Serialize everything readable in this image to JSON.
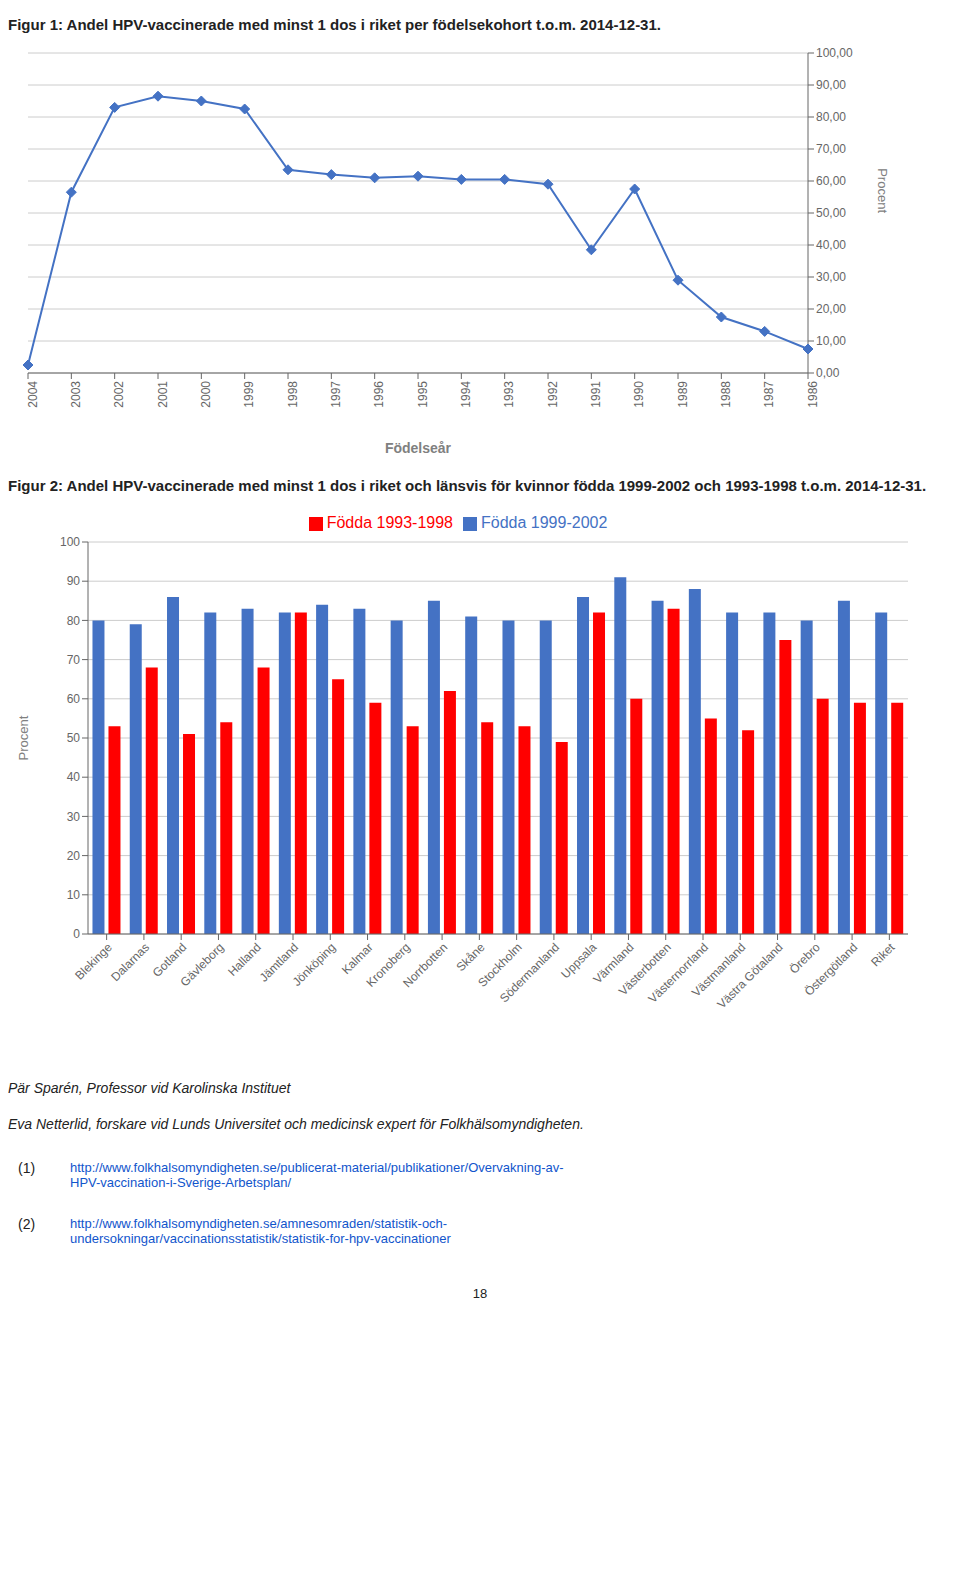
{
  "chart_data": [
    {
      "type": "line",
      "title": "Figur 1: Andel HPV-vaccinerade med minst 1 dos i riket per födelsekohort t.o.m. 2014-12-31.",
      "x_label": "Födelseår",
      "y_label": "Procent",
      "categories": [
        "2004",
        "2003",
        "2002",
        "2001",
        "2000",
        "1999",
        "1998",
        "1997",
        "1996",
        "1995",
        "1994",
        "1993",
        "1992",
        "1991",
        "1990",
        "1989",
        "1988",
        "1987",
        "1986"
      ],
      "values": [
        2.5,
        56.5,
        83.0,
        86.5,
        85.0,
        82.5,
        63.5,
        62.0,
        61.0,
        61.5,
        60.5,
        60.5,
        59.0,
        38.5,
        57.5,
        29.0,
        17.5,
        13.0,
        7.5
      ],
      "color": "#4472C4",
      "marker": "diamond",
      "ylim": [
        0,
        100
      ],
      "yticks": [
        {
          "value": 0,
          "label": "0,00"
        },
        {
          "value": 10,
          "label": "10,00"
        },
        {
          "value": 20,
          "label": "20,00"
        },
        {
          "value": 30,
          "label": "30,00"
        },
        {
          "value": 40,
          "label": "40,00"
        },
        {
          "value": 50,
          "label": "50,00"
        },
        {
          "value": 60,
          "label": "60,00"
        },
        {
          "value": 70,
          "label": "70,00"
        },
        {
          "value": 80,
          "label": "80,00"
        },
        {
          "value": 90,
          "label": "90,00"
        },
        {
          "value": 100,
          "label": "100,00"
        }
      ],
      "grid": true
    },
    {
      "type": "bar",
      "title": "Figur 2: Andel HPV-vaccinerade med minst 1 dos i riket och länsvis för kvinnor födda 1999-2002 och 1993-1998 t.o.m. 2014-12-31.",
      "y_label": "Procent",
      "categories": [
        "Blekinge",
        "Dalarnas",
        "Gotland",
        "Gävleborg",
        "Halland",
        "Jämtland",
        "Jönköping",
        "Kalmar",
        "Kronoberg",
        "Norrbotten",
        "Skåne",
        "Stockholm",
        "Södermanland",
        "Uppsala",
        "Värmland",
        "Västerbotten",
        "Västernorrland",
        "Västmanland",
        "Västra Götaland",
        "Örebro",
        "Östergötland",
        "Riket"
      ],
      "series": [
        {
          "name": "Födda 1999-2002",
          "color": "#4472C4",
          "values": [
            80,
            79,
            86,
            82,
            83,
            82,
            84,
            83,
            80,
            85,
            81,
            80,
            80,
            86,
            91,
            85,
            88,
            82,
            82,
            80,
            85,
            82
          ]
        },
        {
          "name": "Födda 1993-1998",
          "color": "#FF0000",
          "values": [
            53,
            68,
            51,
            54,
            68,
            82,
            65,
            59,
            53,
            62,
            54,
            53,
            49,
            82,
            60,
            83,
            55,
            52,
            75,
            60,
            59,
            59
          ]
        }
      ],
      "ylim": [
        0,
        100
      ],
      "yticks": [
        0,
        10,
        20,
        30,
        40,
        50,
        60,
        70,
        80,
        90,
        100
      ],
      "grid": true,
      "legend": "top",
      "annotations": [
        "Pär Sparén, Professor vid Karolinska Instituet",
        "Eva Netterlid, forskare vid Lunds Universitet och medicinsk expert för Folkhälsomyndigheten.",
        "(1)",
        "http://www.folkhalsomyndigheten.se/publicerat-material/publikationer/Overvakning-av-",
        "HPV-vaccination-i-Sverige-Arbetsplan/",
        "(2)",
        "http://www.folkhalsomyndigheten.se/amnesomraden/statistik-och-",
        "undersokningar/vaccinationsstatistik/statistik-for-hpv-vaccinationer",
        "18"
      ]
    }
  ]
}
